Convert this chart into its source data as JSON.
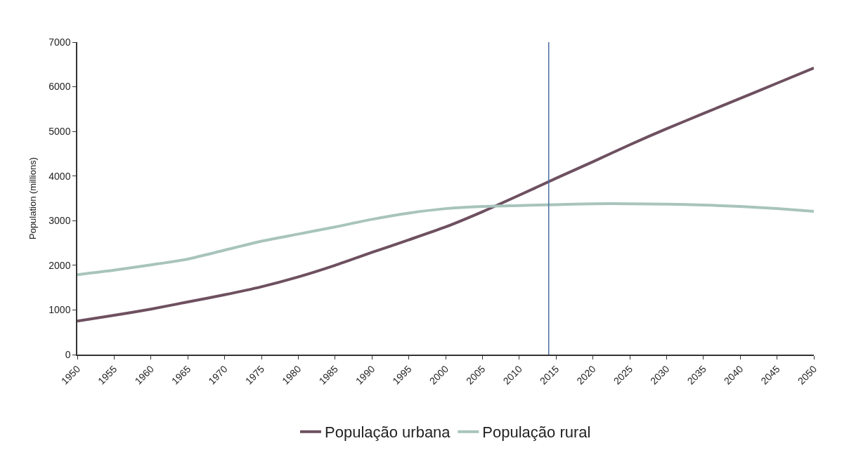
{
  "chart_data": {
    "type": "line",
    "ylabel": "Population (millions)",
    "x": [
      1950,
      1955,
      1960,
      1965,
      1970,
      1975,
      1980,
      1985,
      1990,
      1995,
      2000,
      2005,
      2010,
      2015,
      2020,
      2025,
      2030,
      2035,
      2040,
      2045,
      2050
    ],
    "series": [
      {
        "name": "População urbana",
        "color": "#6e5060",
        "values": [
          750,
          880,
          1020,
          1180,
          1340,
          1520,
          1740,
          2000,
          2290,
          2570,
          2860,
          3200,
          3570,
          3950,
          4320,
          4700,
          5060,
          5400,
          5740,
          6080,
          6420
        ]
      },
      {
        "name": "População rural",
        "color": "#a8c4bc",
        "values": [
          1790,
          1890,
          2010,
          2140,
          2340,
          2540,
          2700,
          2860,
          3030,
          3170,
          3270,
          3320,
          3340,
          3360,
          3380,
          3380,
          3370,
          3350,
          3320,
          3270,
          3210
        ]
      }
    ],
    "xlim": [
      1950,
      2050
    ],
    "xticks": [
      1950,
      1955,
      1960,
      1965,
      1970,
      1975,
      1980,
      1985,
      1990,
      1995,
      2000,
      2005,
      2010,
      2015,
      2020,
      2025,
      2030,
      2035,
      2040,
      2045,
      2050
    ],
    "ylim": [
      0,
      7000
    ],
    "yticks": [
      0,
      1000,
      2000,
      3000,
      4000,
      5000,
      6000,
      7000
    ],
    "ref_lines": [
      {
        "axis": "x",
        "value": 2014,
        "color": "#4a6fa5"
      }
    ],
    "legend": "bottom",
    "marker": "none",
    "line_style": "solid"
  }
}
